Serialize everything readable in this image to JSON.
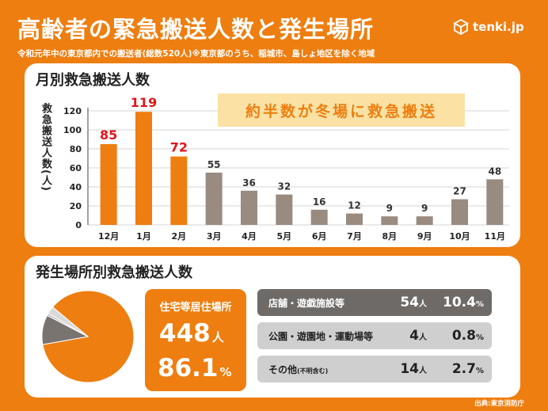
{
  "header": {
    "title": "高齢者の緊急搬送人数と発生場所",
    "subtitle": "令和元年中の東京都内での搬送者(総数520人)※東京都のうち、稲城市、島しょ地区を除く地域",
    "logo_text": "tenki.jp"
  },
  "panel1": {
    "title": "月別救急搬送人数",
    "callout": "約半数が冬場に救急搬送",
    "ylabel": "救急搬送人数(人)"
  },
  "chart_data": {
    "type": "bar",
    "categories": [
      "12月",
      "1月",
      "2月",
      "3月",
      "4月",
      "5月",
      "6月",
      "7月",
      "8月",
      "9月",
      "10月",
      "11月"
    ],
    "values": [
      85,
      119,
      72,
      55,
      36,
      32,
      16,
      12,
      9,
      9,
      27,
      48
    ],
    "highlight": [
      true,
      true,
      true,
      false,
      false,
      false,
      false,
      false,
      false,
      false,
      false,
      false
    ],
    "yticks": [
      0,
      20,
      40,
      60,
      80,
      100,
      120
    ],
    "ylim": [
      0,
      130
    ],
    "colors": {
      "highlight_bar": "#ee7e10",
      "normal_bar": "#998b80",
      "highlight_label": "#e0161b",
      "normal_label": "#333333",
      "grid": "#d4d4d4"
    }
  },
  "panel2": {
    "title": "発生場所別救急搬送人数",
    "donut": {
      "slices": [
        {
          "label": "住宅等居住場所",
          "pct": 86.1,
          "color": "#ee7e10"
        },
        {
          "label": "店舗・遊戯施設等",
          "pct": 10.4,
          "color": "#7a7470"
        },
        {
          "label": "公園・遊園地・運動場等",
          "pct": 0.8,
          "color": "#bdbdbd"
        },
        {
          "label": "その他",
          "pct": 2.7,
          "color": "#d9d9d9"
        }
      ]
    },
    "main": {
      "label": "住宅等居住場所",
      "count": "448",
      "count_unit": "人",
      "pct": "86.1",
      "pct_unit": "%"
    },
    "categories": [
      {
        "name": "店舗・遊戯施設等",
        "note": "",
        "count": "54",
        "count_unit": "人",
        "pct": "10.4",
        "pct_unit": "%"
      },
      {
        "name": "公園・遊園地・運動場等",
        "note": "",
        "count": "4",
        "count_unit": "人",
        "pct": "0.8",
        "pct_unit": "%"
      },
      {
        "name": "その他",
        "note": "(不明含む)",
        "count": "14",
        "count_unit": "人",
        "pct": "2.7",
        "pct_unit": "%"
      }
    ]
  },
  "source": "出典:東京消防庁"
}
